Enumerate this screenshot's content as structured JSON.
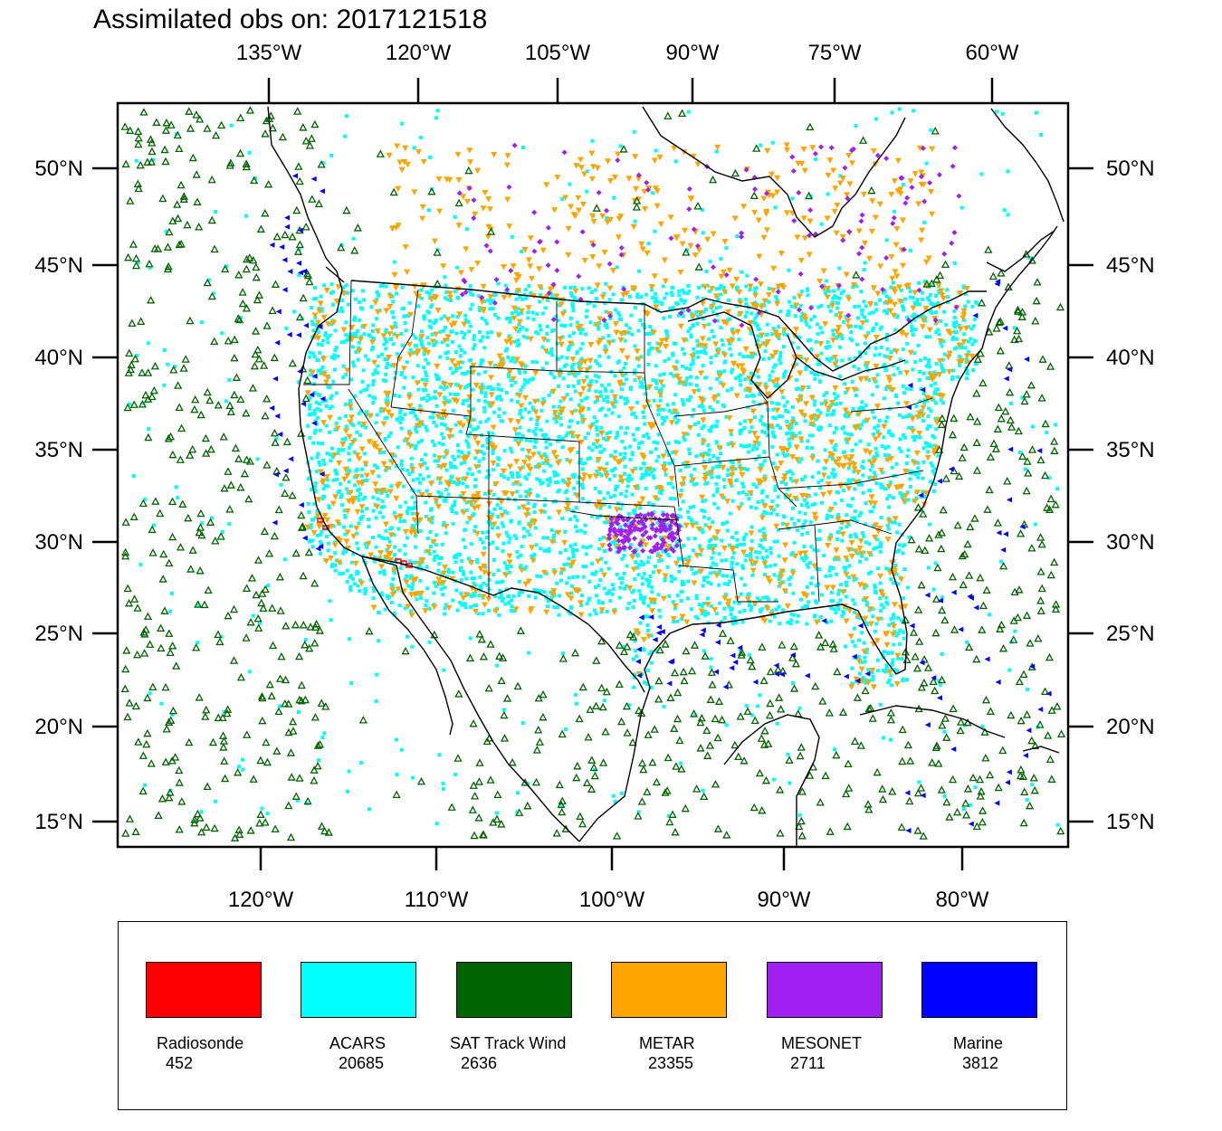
{
  "title": "Assimilated obs on: 2017121518",
  "top_axis": {
    "labels": [
      "135°W",
      "120°W",
      "105°W",
      "90°W",
      "75°W",
      "60°W"
    ]
  },
  "bottom_axis": {
    "labels": [
      "120°W",
      "110°W",
      "100°W",
      "90°W",
      "80°W"
    ]
  },
  "left_axis": {
    "labels": [
      "50°N",
      "45°N",
      "40°N",
      "35°N",
      "30°N",
      "25°N",
      "20°N",
      "15°N"
    ]
  },
  "right_axis": {
    "labels": [
      "50°N",
      "45°N",
      "40°N",
      "35°N",
      "30°N",
      "25°N",
      "20°N",
      "15°N"
    ]
  },
  "legend": [
    {
      "label": "Radiosonde",
      "count": "452",
      "color": "#ff0000"
    },
    {
      "label": "ACARS",
      "count": "20685",
      "color": "#00ffff"
    },
    {
      "label": "SAT Track Wind",
      "count": "2636",
      "color": "#006400"
    },
    {
      "label": "METAR",
      "count": "23355",
      "color": "#ffa500"
    },
    {
      "label": "MESONET",
      "count": "2711",
      "color": "#a020f0"
    },
    {
      "label": "Marine",
      "count": "3812",
      "color": "#0000ff"
    }
  ],
  "colors": {
    "acars": "#00ffff",
    "satwind": "#006400",
    "metar": "#ffa500",
    "mesonet": "#a020f0",
    "marine": "#0000ff",
    "radiosonde": "#ff0000"
  }
}
